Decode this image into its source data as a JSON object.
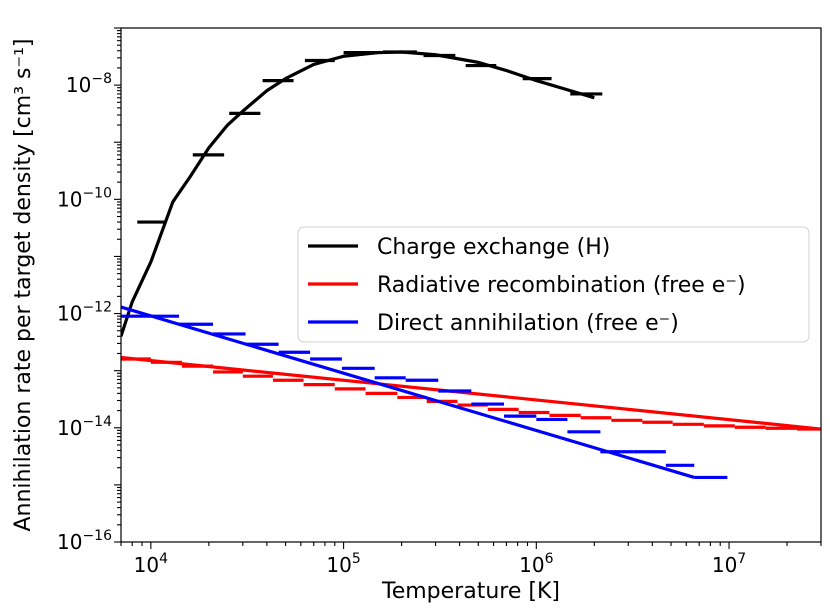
{
  "chart_data": {
    "type": "line",
    "title": "",
    "xlabel": "Temperature [K]",
    "ylabel": "Annihilation rate per target density [cm³ s⁻¹]",
    "xscale": "log",
    "yscale": "log",
    "xlim": [
      7000,
      30000000
    ],
    "ylim": [
      1e-16,
      1e-07
    ],
    "grid": false,
    "legend_position": "center-right",
    "x_ticks": [
      {
        "value": 10000,
        "base": "10",
        "exp": "4"
      },
      {
        "value": 100000,
        "base": "10",
        "exp": "5"
      },
      {
        "value": 1000000,
        "base": "10",
        "exp": "6"
      },
      {
        "value": 10000000,
        "base": "10",
        "exp": "7"
      }
    ],
    "y_ticks": [
      {
        "value": 1e-16,
        "base": "10",
        "exp": "−16"
      },
      {
        "value": 1e-14,
        "base": "10",
        "exp": "−14"
      },
      {
        "value": 1e-12,
        "base": "10",
        "exp": "−12"
      },
      {
        "value": 1e-10,
        "base": "10",
        "exp": "−10"
      },
      {
        "value": 1e-08,
        "base": "10",
        "exp": "−8"
      }
    ],
    "series": [
      {
        "name": "Charge exchange (H)",
        "color": "#000000",
        "line": {
          "x": [
            7000,
            8000,
            10000,
            13000,
            16000,
            20000,
            25000,
            30000,
            40000,
            50000,
            70000,
            100000,
            150000,
            200000,
            300000,
            500000,
            700000,
            1000000,
            1500000,
            2000000
          ],
          "y": [
            4e-13,
            1.6e-12,
            8e-12,
            9e-11,
            2.5e-10,
            8e-10,
            2e-09,
            3.5e-09,
            8e-09,
            1.3e-08,
            2.3e-08,
            3.2e-08,
            3.7e-08,
            3.8e-08,
            3.4e-08,
            2.5e-08,
            1.8e-08,
            1.2e-08,
            8e-09,
            6e-09
          ]
        },
        "bins": [
          {
            "x0": 8500,
            "x1": 12000,
            "y": 4e-11
          },
          {
            "x0": 16500,
            "x1": 24000,
            "y": 6e-10
          },
          {
            "x0": 25500,
            "x1": 37000,
            "y": 3.2e-09
          },
          {
            "x0": 38000,
            "x1": 55000,
            "y": 1.2e-08
          },
          {
            "x0": 63000,
            "x1": 90000,
            "y": 2.7e-08
          },
          {
            "x0": 100000,
            "x1": 150000,
            "y": 3.7e-08
          },
          {
            "x0": 160000,
            "x1": 240000,
            "y": 3.8e-08
          },
          {
            "x0": 260000,
            "x1": 380000,
            "y": 3.3e-08
          },
          {
            "x0": 430000,
            "x1": 620000,
            "y": 2.2e-08
          },
          {
            "x0": 850000,
            "x1": 1200000,
            "y": 1.3e-08
          },
          {
            "x0": 1500000,
            "x1": 2200000,
            "y": 7e-09
          }
        ]
      },
      {
        "name": "Radiative recombination (free e⁻)",
        "color": "#ff0000",
        "line": {
          "x": [
            7000,
            30000000
          ],
          "y": [
            1.7e-13,
            9.5e-15
          ]
        },
        "bins": [
          {
            "x0": 7000,
            "x1": 10000,
            "y": 1.6e-13
          },
          {
            "x0": 10000,
            "x1": 14500,
            "y": 1.4e-13
          },
          {
            "x0": 14500,
            "x1": 21000,
            "y": 1.2e-13
          },
          {
            "x0": 21000,
            "x1": 30000,
            "y": 9.5e-14
          },
          {
            "x0": 30000,
            "x1": 43000,
            "y": 8e-14
          },
          {
            "x0": 43000,
            "x1": 62000,
            "y": 6.8e-14
          },
          {
            "x0": 62000,
            "x1": 90000,
            "y": 5.7e-14
          },
          {
            "x0": 90000,
            "x1": 130000,
            "y": 4.8e-14
          },
          {
            "x0": 130000,
            "x1": 190000,
            "y": 4e-14
          },
          {
            "x0": 190000,
            "x1": 270000,
            "y": 3.4e-14
          },
          {
            "x0": 270000,
            "x1": 390000,
            "y": 2.9e-14
          },
          {
            "x0": 390000,
            "x1": 560000,
            "y": 2.5e-14
          },
          {
            "x0": 560000,
            "x1": 810000,
            "y": 2.1e-14
          },
          {
            "x0": 810000,
            "x1": 1170000,
            "y": 1.85e-14
          },
          {
            "x0": 1170000,
            "x1": 1700000,
            "y": 1.65e-14
          },
          {
            "x0": 1700000,
            "x1": 2450000,
            "y": 1.5e-14
          },
          {
            "x0": 2450000,
            "x1": 3550000,
            "y": 1.35e-14
          },
          {
            "x0": 3550000,
            "x1": 5100000,
            "y": 1.25e-14
          },
          {
            "x0": 5100000,
            "x1": 7400000,
            "y": 1.15e-14
          },
          {
            "x0": 7400000,
            "x1": 10700000,
            "y": 1.08e-14
          },
          {
            "x0": 10700000,
            "x1": 15500000,
            "y": 1.02e-14
          },
          {
            "x0": 15500000,
            "x1": 22500000,
            "y": 9.8e-15
          },
          {
            "x0": 22500000,
            "x1": 30000000,
            "y": 9.5e-15
          }
        ]
      },
      {
        "name": "Direct annihilation (free e⁻)",
        "color": "#0000ff",
        "line": {
          "x": [
            7000,
            6600000
          ],
          "y": [
            1.3e-12,
            1.35e-15
          ]
        },
        "bins": [
          {
            "x0": 7000,
            "x1": 14000,
            "y": 9e-13
          },
          {
            "x0": 14000,
            "x1": 21000,
            "y": 6.5e-13
          },
          {
            "x0": 21000,
            "x1": 31000,
            "y": 4.4e-13
          },
          {
            "x0": 31000,
            "x1": 46000,
            "y": 2.9e-13
          },
          {
            "x0": 46000,
            "x1": 67000,
            "y": 2.1e-13
          },
          {
            "x0": 67000,
            "x1": 98000,
            "y": 1.6e-13
          },
          {
            "x0": 98000,
            "x1": 145000,
            "y": 1.1e-13
          },
          {
            "x0": 145000,
            "x1": 210000,
            "y": 7.5e-14
          },
          {
            "x0": 210000,
            "x1": 310000,
            "y": 6.8e-14
          },
          {
            "x0": 310000,
            "x1": 460000,
            "y": 4.4e-14
          },
          {
            "x0": 460000,
            "x1": 680000,
            "y": 2.6e-14
          },
          {
            "x0": 680000,
            "x1": 1000000,
            "y": 1.6e-14
          },
          {
            "x0": 1000000,
            "x1": 1450000,
            "y": 1.4e-14
          },
          {
            "x0": 1450000,
            "x1": 2150000,
            "y": 8.5e-15
          },
          {
            "x0": 2150000,
            "x1": 3200000,
            "y": 3.8e-15
          },
          {
            "x0": 3200000,
            "x1": 4700000,
            "y": 3.8e-15
          },
          {
            "x0": 4700000,
            "x1": 6600000,
            "y": 2.2e-15
          },
          {
            "x0": 6600000,
            "x1": 9800000,
            "y": 1.35e-15
          }
        ]
      }
    ]
  }
}
